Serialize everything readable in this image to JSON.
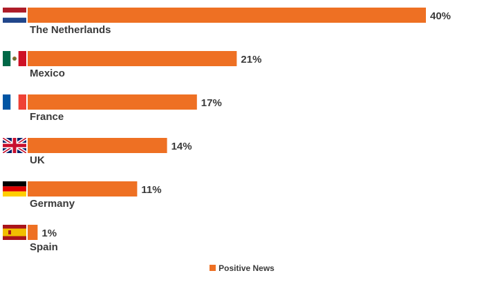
{
  "chart_data": {
    "type": "bar",
    "orientation": "horizontal",
    "categories": [
      "The Netherlands",
      "Mexico",
      "France",
      "UK",
      "Germany",
      "Spain"
    ],
    "series": [
      {
        "name": "Positive News",
        "values": [
          40,
          21,
          17,
          14,
          11,
          1
        ],
        "color": "#ee7023"
      }
    ],
    "value_labels": [
      "40%",
      "21%",
      "17%",
      "14%",
      "11%",
      "1%"
    ],
    "xlim": [
      0,
      40
    ],
    "grid": false,
    "legend": {
      "position": "bottom",
      "entries": [
        "Positive News"
      ]
    },
    "flag_icons": [
      "netherlands-flag-icon",
      "mexico-flag-icon",
      "france-flag-icon",
      "uk-flag-icon",
      "germany-flag-icon",
      "spain-flag-icon"
    ]
  }
}
